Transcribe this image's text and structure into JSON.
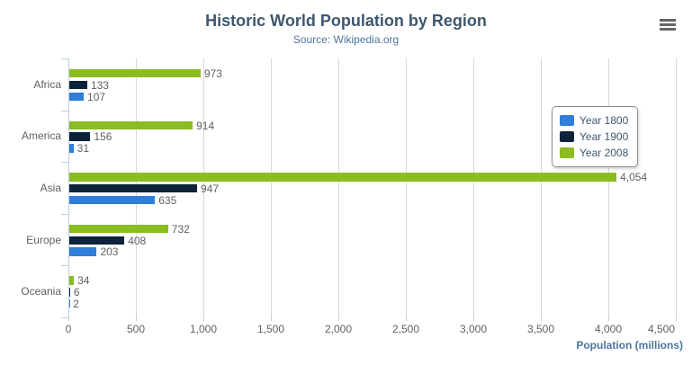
{
  "export_menu": {
    "icon": "hamburger-icon"
  },
  "chart_data": {
    "type": "bar",
    "title": "Historic World Population by Region",
    "subtitle": "Source: Wikipedia.org",
    "categories": [
      "Africa",
      "America",
      "Asia",
      "Europe",
      "Oceania"
    ],
    "series": [
      {
        "name": "Year 1800",
        "color": "#2f7ed8",
        "values": [
          107,
          31,
          635,
          203,
          2
        ]
      },
      {
        "name": "Year 1900",
        "color": "#0d233a",
        "values": [
          133,
          156,
          947,
          408,
          6
        ]
      },
      {
        "name": "Year 2008",
        "color": "#8bbc21",
        "values": [
          973,
          914,
          4054,
          732,
          34
        ]
      }
    ],
    "bar_display_order": [
      "Year 2008",
      "Year 1900",
      "Year 1800"
    ],
    "data_labels": [
      "973",
      "133",
      "107",
      "914",
      "156",
      "31",
      "4,054",
      "947",
      "635",
      "732",
      "408",
      "203",
      "34",
      "6",
      "2"
    ],
    "xlabel": "Population (millions)",
    "xlim": [
      0,
      4500
    ],
    "tick_interval": 500,
    "tick_labels": [
      "0",
      "500",
      "1,000",
      "1,500",
      "2,000",
      "2,500",
      "3,000",
      "3,500",
      "4,000",
      "4,500"
    ],
    "grid": true,
    "legend_position": "right-middle",
    "legend_entries": [
      "Year 1800",
      "Year 1900",
      "Year 2008"
    ]
  },
  "colors": {
    "title": "#3E576F",
    "subtitle": "#4d759e",
    "axis_title": "#4d759e",
    "axis_line": "#c0d0e0",
    "gridline": "#d8d8d8",
    "labels": "#606060",
    "legend_border": "#909090",
    "legend_text": "#3E576F",
    "menu_icon": "#666666"
  }
}
